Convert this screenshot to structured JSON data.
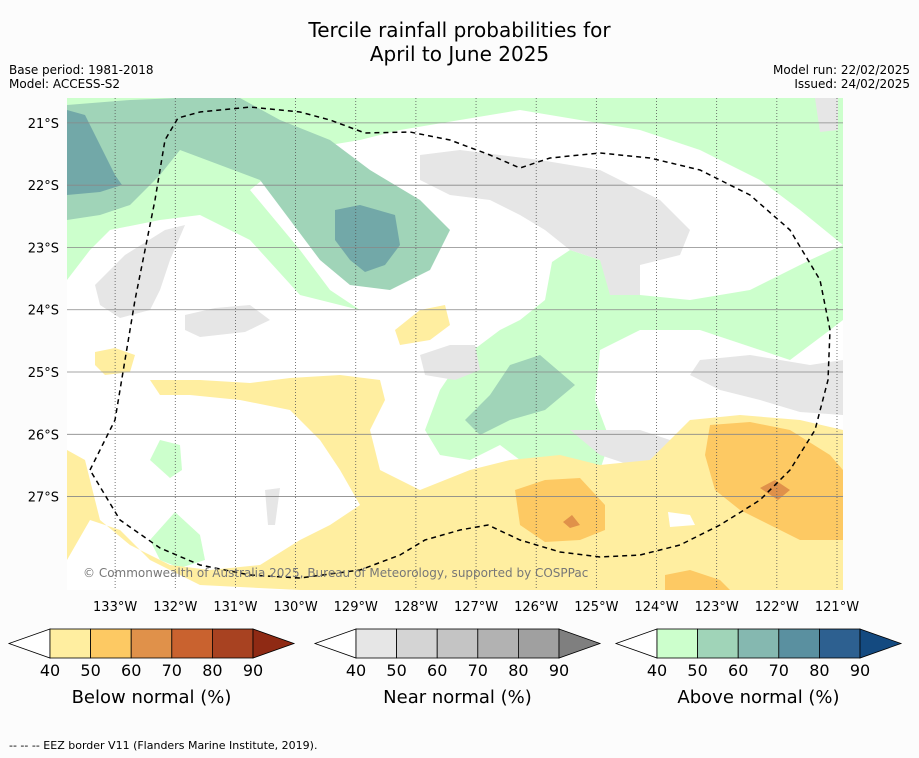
{
  "title_line1": "Tercile rainfall probabilities for",
  "title_line2": "April to June 2025",
  "base_period": "Base period: 1981-2018",
  "model": "Model: ACCESS-S2",
  "model_run": "Model run: 22/02/2025",
  "issued": "Issued: 24/02/2025",
  "copyright": "© Commonwealth of Australia 2025, Bureau of Meteorology, supported by COSPPac",
  "footnote": "-- -- -- EEZ border V11 (Flanders Marine Institute, 2019).",
  "colors": {
    "below": [
      "#ffeea0",
      "#fdc963",
      "#e0914a",
      "#c9622f",
      "#a84221",
      "#8f2a14"
    ],
    "near": [
      "#e6e6e6",
      "#d4d4d4",
      "#c4c4c4",
      "#b2b2b2",
      "#a0a0a0",
      "#7f7f7f"
    ],
    "above": [
      "#ccffcc",
      "#a0d4b8",
      "#85b8b0",
      "#5a90a0",
      "#2d6090",
      "#144a80"
    ],
    "ocean": "#ffffff"
  },
  "chart_data": {
    "type": "heatmap",
    "x_ticks": [
      "133°W",
      "132°W",
      "131°W",
      "130°W",
      "129°W",
      "128°W",
      "127°W",
      "126°W",
      "125°W",
      "124°W",
      "123°W",
      "122°W",
      "121°W"
    ],
    "y_ticks": [
      "21°S",
      "22°S",
      "23°S",
      "24°S",
      "25°S",
      "26°S",
      "27°S"
    ],
    "lon_range": [
      -133.8,
      -120.9
    ],
    "lat_range": [
      -28.5,
      -20.6
    ],
    "grid": true,
    "legends": [
      {
        "label": "Below normal (%)",
        "ticks": [
          "40",
          "50",
          "60",
          "70",
          "80",
          "90"
        ]
      },
      {
        "label": "Near normal (%)",
        "ticks": [
          "40",
          "50",
          "60",
          "70",
          "80",
          "90"
        ]
      },
      {
        "label": "Above normal (%)",
        "ticks": [
          "40",
          "50",
          "60",
          "70",
          "80",
          "90"
        ]
      }
    ]
  }
}
